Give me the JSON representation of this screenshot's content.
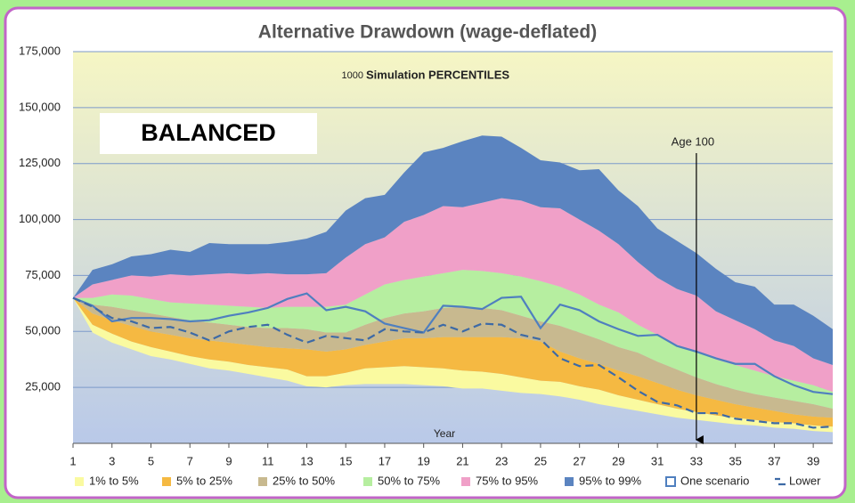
{
  "chart_data": {
    "type": "band",
    "title": "Alternative Drawdown (wage-deflated)",
    "subtitle_count": "1000",
    "subtitle": "Simulation PERCENTILES",
    "label_box": "BALANCED",
    "x_label": "Year",
    "age_marker": {
      "x": 33,
      "label": "Age 100"
    },
    "x": [
      1,
      2,
      3,
      4,
      5,
      6,
      7,
      8,
      9,
      10,
      11,
      12,
      13,
      14,
      15,
      16,
      17,
      18,
      19,
      20,
      21,
      22,
      23,
      24,
      25,
      26,
      27,
      28,
      29,
      30,
      31,
      32,
      33,
      34,
      35,
      36,
      37,
      38,
      39,
      40
    ],
    "xlim": [
      1,
      40
    ],
    "xticks": [
      1,
      3,
      5,
      7,
      9,
      11,
      13,
      15,
      17,
      19,
      21,
      23,
      25,
      27,
      29,
      31,
      33,
      35,
      37,
      39
    ],
    "ylim": [
      0,
      175000
    ],
    "yticks": [
      {
        "value": 25000,
        "label": "25,000"
      },
      {
        "value": 50000,
        "label": "50,000"
      },
      {
        "value": 75000,
        "label": "75,000"
      },
      {
        "value": 100000,
        "label": "100,000"
      },
      {
        "value": 125000,
        "label": "125,000"
      },
      {
        "value": 150000,
        "label": "150,000"
      },
      {
        "value": 175000,
        "label": "175,000"
      }
    ],
    "grid": true,
    "series": [
      {
        "name": "1% to 5%",
        "color": "#fafaa0",
        "lower": [
          65000,
          49500,
          45000,
          42000,
          39000,
          37500,
          35500,
          33500,
          32500,
          31000,
          29500,
          28000,
          25500,
          25000,
          26000,
          26500,
          26500,
          26500,
          26000,
          25500,
          24500,
          24500,
          23500,
          22500,
          22000,
          21000,
          19500,
          17500,
          16000,
          14500,
          13000,
          11500,
          10500,
          9500,
          8500,
          8000,
          7000,
          6500,
          5500,
          5000
        ],
        "values": [
          65000,
          53000,
          49000,
          45500,
          43000,
          41000,
          39000,
          37500,
          36500,
          35000,
          34000,
          33000,
          30000,
          30000,
          31500,
          33500,
          34000,
          34500,
          34000,
          33500,
          32500,
          32000,
          31000,
          29500,
          28000,
          27500,
          25500,
          24000,
          21500,
          19500,
          17500,
          15500,
          14000,
          12500,
          11500,
          10500,
          9500,
          9000,
          8000,
          7500
        ]
      },
      {
        "name": "5% to 25%",
        "color": "#f5b942",
        "values": [
          65000,
          58000,
          55000,
          52500,
          50000,
          48500,
          47000,
          46000,
          45000,
          44000,
          43000,
          42500,
          42000,
          41000,
          42000,
          44000,
          45500,
          47000,
          47000,
          47500,
          47500,
          47500,
          47500,
          47000,
          45500,
          41000,
          38000,
          35500,
          32500,
          30000,
          27000,
          24000,
          21500,
          19500,
          17500,
          16000,
          14500,
          13000,
          12000,
          11500
        ]
      },
      {
        "name": "25% to 50%",
        "color": "#c8b98f",
        "values": [
          65000,
          62000,
          61000,
          59500,
          58000,
          56500,
          55000,
          54000,
          53000,
          52000,
          51500,
          51500,
          51000,
          49500,
          49500,
          53000,
          56000,
          58000,
          59000,
          60500,
          61000,
          60500,
          59500,
          57000,
          54500,
          52500,
          49500,
          46500,
          43000,
          40500,
          36500,
          33000,
          29500,
          26500,
          24000,
          22000,
          20500,
          19000,
          17500,
          15500
        ]
      },
      {
        "name": "50% to 75%",
        "color": "#b6eea0",
        "values": [
          65000,
          65000,
          66500,
          66000,
          64500,
          63000,
          62500,
          62000,
          61500,
          61000,
          60500,
          61000,
          61000,
          61000,
          62000,
          66500,
          71000,
          73000,
          74500,
          76000,
          77500,
          77000,
          76000,
          74500,
          72500,
          70000,
          66500,
          62000,
          58500,
          53000,
          48500,
          44000,
          41000,
          37500,
          35000,
          32500,
          30000,
          28000,
          26000,
          23000
        ]
      },
      {
        "name": "75% to 95%",
        "color": "#f0a0c8",
        "values": [
          65000,
          71000,
          73000,
          75000,
          74500,
          75500,
          75000,
          75500,
          76000,
          75500,
          76000,
          75500,
          75500,
          76000,
          83000,
          89000,
          92000,
          99000,
          102000,
          106000,
          105500,
          107500,
          109500,
          108500,
          105500,
          105000,
          100000,
          95000,
          89000,
          81000,
          74000,
          69000,
          66000,
          59000,
          55000,
          51000,
          46000,
          43500,
          38000,
          35000
        ]
      },
      {
        "name": "95% to 99%",
        "color": "#5b84c0",
        "values": [
          65000,
          77500,
          80000,
          83500,
          84500,
          86500,
          85500,
          89500,
          89000,
          89000,
          89000,
          90000,
          91500,
          94500,
          104000,
          109500,
          111000,
          121000,
          130000,
          132000,
          135000,
          137500,
          137000,
          132000,
          126500,
          125500,
          122000,
          122500,
          113000,
          106000,
          96000,
          90500,
          85000,
          78000,
          72000,
          70000,
          62000,
          62000,
          57000,
          51000
        ]
      }
    ],
    "lines": [
      {
        "name": "One scenario",
        "color": "#4f7fbf",
        "dashed": false,
        "values": [
          65000,
          61500,
          54500,
          56000,
          56000,
          55500,
          54500,
          55000,
          57000,
          58500,
          60500,
          64500,
          67000,
          59500,
          61000,
          59000,
          53500,
          51500,
          49500,
          61500,
          61000,
          60000,
          65000,
          65500,
          51500,
          62000,
          59500,
          54500,
          51000,
          48000,
          48500,
          43500,
          41000,
          38000,
          35500,
          35500,
          30000,
          26000,
          23000,
          22000
        ]
      },
      {
        "name": "Lower",
        "color": "#3d6aa6",
        "dashed": true,
        "values": [
          65000,
          61000,
          56000,
          54500,
          51500,
          52000,
          49500,
          46000,
          50000,
          52000,
          53000,
          48500,
          45000,
          48000,
          47000,
          46000,
          51000,
          50000,
          49500,
          53000,
          50000,
          53500,
          53000,
          48500,
          46500,
          38000,
          34500,
          35000,
          29500,
          23500,
          18500,
          17000,
          13500,
          13500,
          11000,
          10000,
          9000,
          9000,
          7000,
          7500
        ]
      }
    ]
  }
}
